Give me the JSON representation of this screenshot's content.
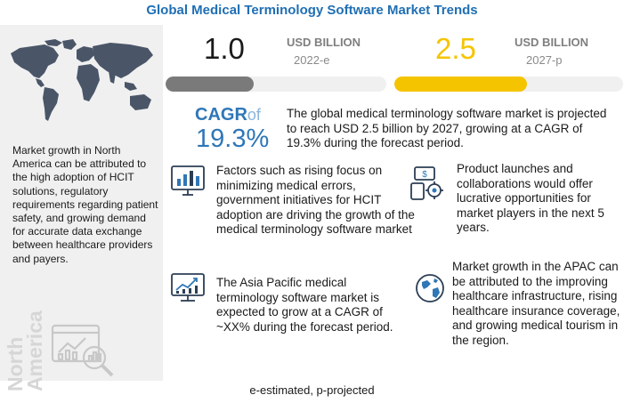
{
  "title": "Global Medical Terminology Software Market Trends",
  "left_panel": {
    "description": "Market growth in North America can be attributed to the high adoption of HCIT solutions, regulatory requirements regarding patient safety, and growing demand for accurate data exchange between healthcare providers and payers.",
    "region_label": "North America",
    "icons": [
      "world-map-icon",
      "analytics-magnifier-icon"
    ]
  },
  "market_2022": {
    "value": "1.0",
    "unit": "USD BILLION",
    "year": "2022-e",
    "progress_fraction": 0.4,
    "color": "#7a7a7a"
  },
  "market_2027": {
    "value": "2.5",
    "unit": "USD BILLION",
    "year": "2027-p",
    "progress_fraction": 0.58,
    "color": "#f5c400"
  },
  "cagr": {
    "label": "CAGR",
    "of": "of",
    "value": "19.3%",
    "description": "The global medical terminology software market is projected to reach USD 2.5 billion by 2027, growing at a CAGR of 19.3% during the forecast period.",
    "color": "#2f77b7"
  },
  "insights": [
    {
      "text": "Factors such as rising focus on minimizing medical errors, government initiatives for HCIT adoption are driving the growth of the medical terminology software market",
      "icon": "bar-chart-monitor-icon"
    },
    {
      "text": "Product launches and collaborations would offer lucrative opportunities for market players in the next 5 years.",
      "icon": "money-gear-icon"
    },
    {
      "text": "The Asia Pacific medical terminology software market is expected to grow at a CAGR of ~XX% during the forecast period.",
      "icon": "growth-chart-icon"
    },
    {
      "text": "Market growth in the APAC can be attributed to the improving healthcare infrastructure, rising healthcare insurance coverage, and growing medical tourism in the region.",
      "icon": "globe-icon"
    }
  ],
  "footnote": "e-estimated, p-projected"
}
